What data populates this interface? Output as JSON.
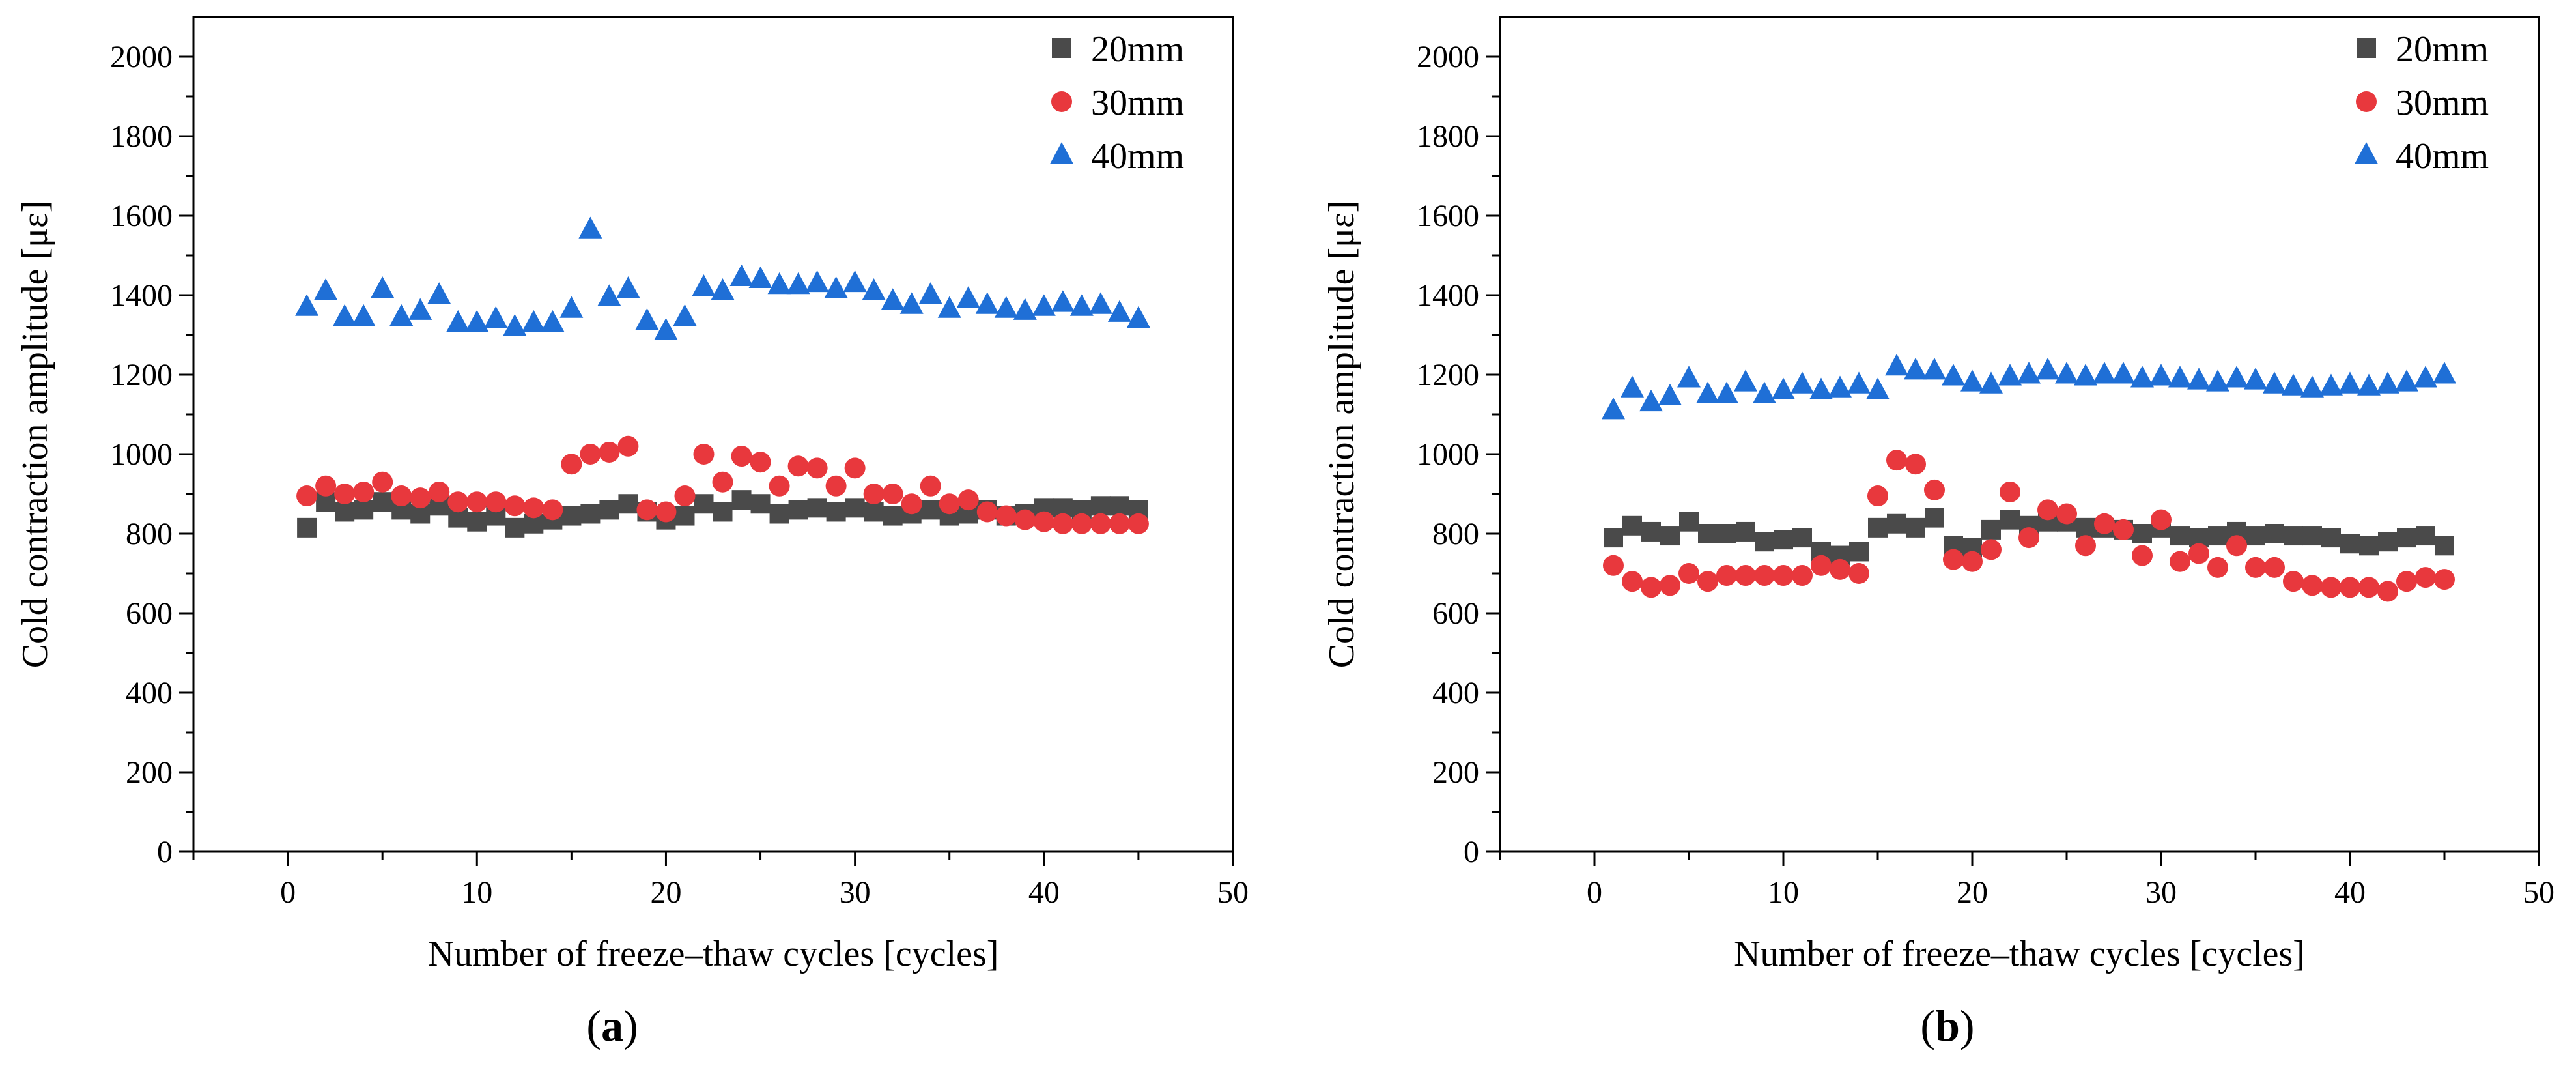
{
  "chart_data": [
    {
      "type": "scatter",
      "panel": "a",
      "panel_label_open": "(",
      "panel_label_letter": "a",
      "panel_label_close": ")",
      "xlabel": "Number of freeze–thaw cycles [cycles]",
      "ylabel": "Cold contraction amplitude [με]",
      "xlim": [
        -5,
        50
      ],
      "ylim": [
        0,
        2100
      ],
      "xticks": [
        0,
        10,
        20,
        30,
        40,
        50
      ],
      "yticks": [
        0,
        200,
        400,
        600,
        800,
        1000,
        1200,
        1400,
        1600,
        1800,
        2000
      ],
      "legend_position": "top-right",
      "x": [
        1,
        2,
        3,
        4,
        5,
        6,
        7,
        8,
        9,
        10,
        11,
        12,
        13,
        14,
        15,
        16,
        17,
        18,
        19,
        20,
        21,
        22,
        23,
        24,
        25,
        26,
        27,
        28,
        29,
        30,
        31,
        32,
        33,
        34,
        35,
        36,
        37,
        38,
        39,
        40,
        41,
        42,
        43,
        44,
        45
      ],
      "series": [
        {
          "name": "20mm",
          "marker": "square",
          "color": "#4a4a4a",
          "values": [
            815,
            880,
            855,
            860,
            880,
            860,
            850,
            870,
            840,
            830,
            845,
            815,
            825,
            835,
            845,
            850,
            860,
            875,
            855,
            835,
            845,
            875,
            855,
            885,
            875,
            850,
            860,
            865,
            855,
            865,
            855,
            845,
            850,
            860,
            845,
            850,
            860,
            845,
            850,
            865,
            865,
            860,
            870,
            870,
            860
          ]
        },
        {
          "name": "30mm",
          "marker": "circle",
          "color": "#e8383d",
          "values": [
            895,
            920,
            900,
            905,
            930,
            895,
            890,
            905,
            880,
            880,
            880,
            870,
            865,
            860,
            975,
            1000,
            1005,
            1020,
            860,
            855,
            895,
            1000,
            930,
            995,
            980,
            920,
            970,
            965,
            920,
            965,
            900,
            900,
            875,
            920,
            875,
            885,
            855,
            845,
            835,
            830,
            825,
            825,
            825,
            825,
            825
          ]
        },
        {
          "name": "40mm",
          "marker": "triangle",
          "color": "#1f6fd6",
          "values": [
            1370,
            1410,
            1345,
            1345,
            1415,
            1345,
            1360,
            1400,
            1330,
            1330,
            1340,
            1320,
            1330,
            1330,
            1365,
            1565,
            1395,
            1415,
            1335,
            1310,
            1345,
            1420,
            1410,
            1445,
            1440,
            1425,
            1425,
            1430,
            1415,
            1430,
            1410,
            1385,
            1375,
            1400,
            1365,
            1390,
            1375,
            1365,
            1360,
            1370,
            1380,
            1370,
            1375,
            1355,
            1340
          ]
        }
      ]
    },
    {
      "type": "scatter",
      "panel": "b",
      "panel_label_open": "(",
      "panel_label_letter": "b",
      "panel_label_close": ")",
      "xlabel": "Number of freeze–thaw cycles [cycles]",
      "ylabel": "Cold contraction amplitude [με]",
      "xlim": [
        -5,
        50
      ],
      "ylim": [
        0,
        2100
      ],
      "xticks": [
        0,
        10,
        20,
        30,
        40,
        50
      ],
      "yticks": [
        0,
        200,
        400,
        600,
        800,
        1000,
        1200,
        1400,
        1600,
        1800,
        2000
      ],
      "legend_position": "top-right",
      "x": [
        1,
        2,
        3,
        4,
        5,
        6,
        7,
        8,
        9,
        10,
        11,
        12,
        13,
        14,
        15,
        16,
        17,
        18,
        19,
        20,
        21,
        22,
        23,
        24,
        25,
        26,
        27,
        28,
        29,
        30,
        31,
        32,
        33,
        34,
        35,
        36,
        37,
        38,
        39,
        40,
        41,
        42,
        43,
        44,
        45
      ],
      "series": [
        {
          "name": "20mm",
          "marker": "square",
          "color": "#4a4a4a",
          "values": [
            790,
            820,
            805,
            795,
            830,
            800,
            800,
            805,
            780,
            785,
            790,
            755,
            745,
            755,
            815,
            825,
            815,
            840,
            770,
            765,
            810,
            835,
            820,
            830,
            830,
            815,
            815,
            810,
            800,
            815,
            795,
            790,
            795,
            805,
            795,
            800,
            795,
            795,
            790,
            775,
            770,
            780,
            790,
            795,
            770
          ]
        },
        {
          "name": "30mm",
          "marker": "circle",
          "color": "#e8383d",
          "values": [
            720,
            680,
            665,
            670,
            700,
            680,
            695,
            695,
            695,
            695,
            695,
            720,
            710,
            700,
            895,
            985,
            975,
            910,
            735,
            730,
            760,
            905,
            790,
            860,
            850,
            770,
            825,
            810,
            745,
            835,
            730,
            750,
            715,
            770,
            715,
            715,
            680,
            670,
            665,
            665,
            665,
            655,
            680,
            690,
            685
          ]
        },
        {
          "name": "40mm",
          "marker": "triangle",
          "color": "#1f6fd6",
          "values": [
            1110,
            1165,
            1130,
            1145,
            1190,
            1150,
            1150,
            1180,
            1150,
            1160,
            1175,
            1160,
            1165,
            1175,
            1160,
            1220,
            1210,
            1210,
            1195,
            1180,
            1175,
            1195,
            1200,
            1210,
            1200,
            1195,
            1200,
            1200,
            1190,
            1195,
            1190,
            1185,
            1180,
            1190,
            1185,
            1175,
            1170,
            1165,
            1170,
            1175,
            1170,
            1175,
            1180,
            1190,
            1200
          ]
        }
      ]
    }
  ]
}
